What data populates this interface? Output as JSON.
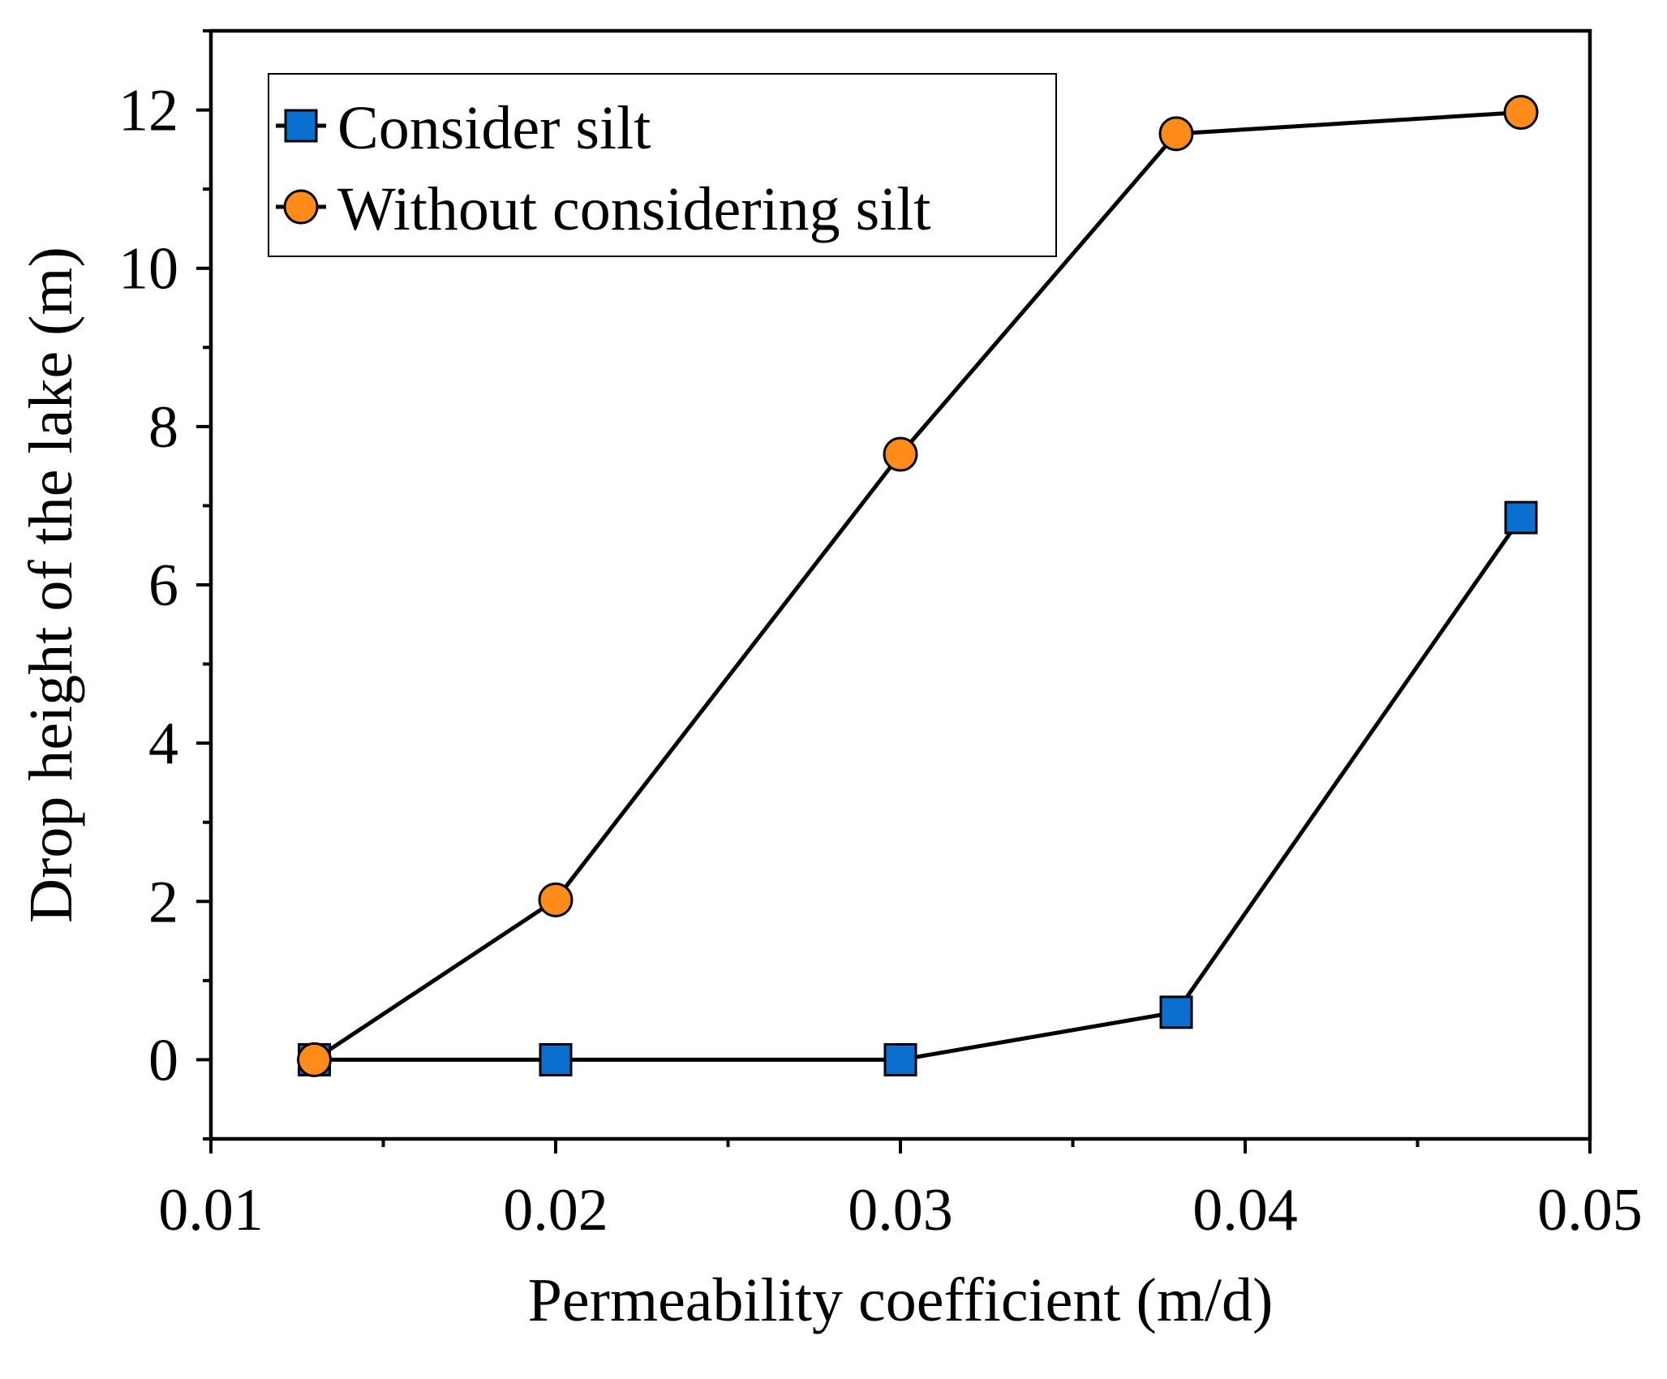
{
  "chart_data": {
    "type": "line",
    "title": "",
    "xlabel": "Permeability coefficient (m/d)",
    "ylabel": "Drop height of the lake (m)",
    "xlim": [
      0.01,
      0.05
    ],
    "ylim": [
      -1,
      13
    ],
    "x_ticks": [
      "0.01",
      "0.02",
      "0.03",
      "0.04",
      "0.05"
    ],
    "x_tick_values": [
      0.01,
      0.02,
      0.03,
      0.04,
      0.05
    ],
    "y_ticks": [
      "0",
      "2",
      "4",
      "6",
      "8",
      "10",
      "12"
    ],
    "y_tick_values": [
      0,
      2,
      4,
      6,
      8,
      10,
      12
    ],
    "legend_position": "top-left",
    "series": [
      {
        "name": "Consider silt",
        "marker": "square",
        "color": "#0a6fce",
        "x": [
          0.013,
          0.02,
          0.03,
          0.038,
          0.048
        ],
        "y": [
          0.0,
          0.0,
          0.0,
          0.6,
          6.85
        ]
      },
      {
        "name": "Without considering silt",
        "marker": "circle",
        "color": "#ff8c1a",
        "x": [
          0.013,
          0.02,
          0.03,
          0.038,
          0.048
        ],
        "y": [
          0.0,
          2.02,
          7.65,
          11.7,
          11.97
        ]
      }
    ]
  }
}
